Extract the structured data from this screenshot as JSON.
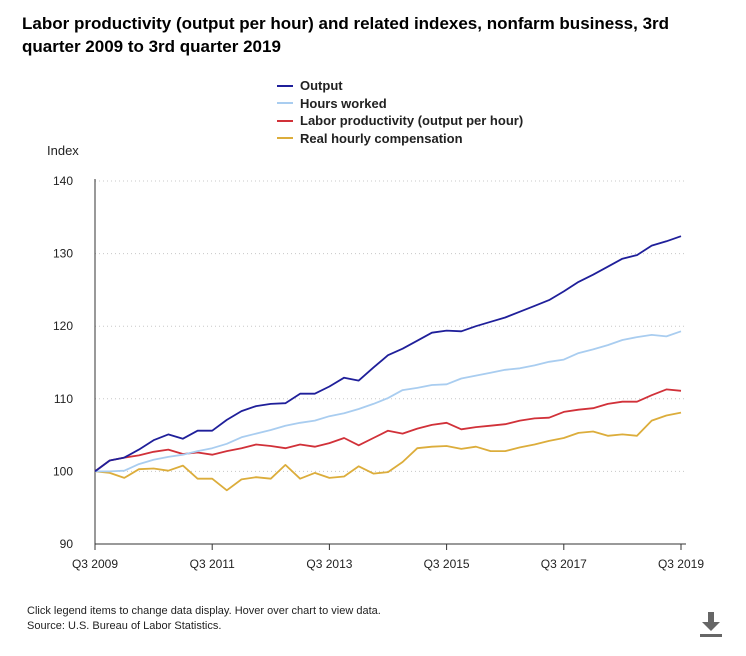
{
  "title": "Labor productivity (output per hour) and related indexes, nonfarm business, 3rd quarter 2009 to 3rd quarter 2019",
  "footer": {
    "note": "Click legend items to change data display. Hover over chart to view data.",
    "source": "Source: U.S. Bureau of Labor Statistics."
  },
  "download_icon": "download-icon",
  "chart_data": {
    "type": "line",
    "title": "Labor productivity (output per hour) and related indexes, nonfarm business, 3rd quarter 2009 to 3rd quarter 2019",
    "ylabel": "Index",
    "xlabel": "",
    "ylim": [
      90,
      140
    ],
    "yticks": [
      90,
      100,
      110,
      120,
      130,
      140
    ],
    "grid": true,
    "legend_position": "top-center",
    "x_tick_labels": [
      "Q3 2009",
      "Q3 2011",
      "Q3 2013",
      "Q3 2015",
      "Q3 2017",
      "Q3 2019"
    ],
    "x_tick_indices": [
      0,
      8,
      16,
      24,
      32,
      40
    ],
    "series": [
      {
        "name": "Output",
        "color": "#1f1f9a",
        "values": [
          100.0,
          101.5,
          101.9,
          103.0,
          104.3,
          105.1,
          104.5,
          105.6,
          105.6,
          107.1,
          108.3,
          109.0,
          109.3,
          109.4,
          110.7,
          110.7,
          111.7,
          112.9,
          112.5,
          114.3,
          116.0,
          116.9,
          118.0,
          119.1,
          119.4,
          119.3,
          120.0,
          120.6,
          121.2,
          122.0,
          122.8,
          123.6,
          124.8,
          126.1,
          127.1,
          128.2,
          129.3,
          129.8,
          131.1,
          131.7,
          132.4
        ]
      },
      {
        "name": "Hours worked",
        "color": "#a9cdf0",
        "values": [
          100.0,
          100.0,
          100.1,
          101.0,
          101.6,
          102.0,
          102.3,
          102.8,
          103.2,
          103.8,
          104.7,
          105.2,
          105.7,
          106.3,
          106.7,
          107.0,
          107.6,
          108.0,
          108.6,
          109.3,
          110.1,
          111.2,
          111.5,
          111.9,
          112.0,
          112.8,
          113.2,
          113.6,
          114.0,
          114.2,
          114.6,
          115.1,
          115.4,
          116.3,
          116.8,
          117.4,
          118.1,
          118.5,
          118.8,
          118.6,
          119.3
        ]
      },
      {
        "name": "Labor productivity (output per hour)",
        "color": "#d13139",
        "values": [
          100.0,
          101.5,
          101.9,
          102.2,
          102.7,
          103.0,
          102.4,
          102.6,
          102.3,
          102.8,
          103.2,
          103.7,
          103.5,
          103.2,
          103.7,
          103.4,
          103.9,
          104.6,
          103.6,
          104.6,
          105.6,
          105.2,
          105.9,
          106.4,
          106.7,
          105.8,
          106.1,
          106.3,
          106.5,
          107.0,
          107.3,
          107.4,
          108.2,
          108.5,
          108.7,
          109.3,
          109.6,
          109.6,
          110.5,
          111.3,
          111.1
        ]
      },
      {
        "name": "Real hourly compensation",
        "color": "#dcad3b",
        "values": [
          100.0,
          99.8,
          99.1,
          100.3,
          100.4,
          100.1,
          100.8,
          99.0,
          99.0,
          97.4,
          98.9,
          99.2,
          99.0,
          100.9,
          99.0,
          99.8,
          99.1,
          99.3,
          100.7,
          99.7,
          99.9,
          101.3,
          103.2,
          103.4,
          103.5,
          103.1,
          103.4,
          102.8,
          102.8,
          103.3,
          103.7,
          104.2,
          104.6,
          105.3,
          105.5,
          104.9,
          105.1,
          104.9,
          107.0,
          107.7,
          108.1
        ]
      }
    ]
  }
}
